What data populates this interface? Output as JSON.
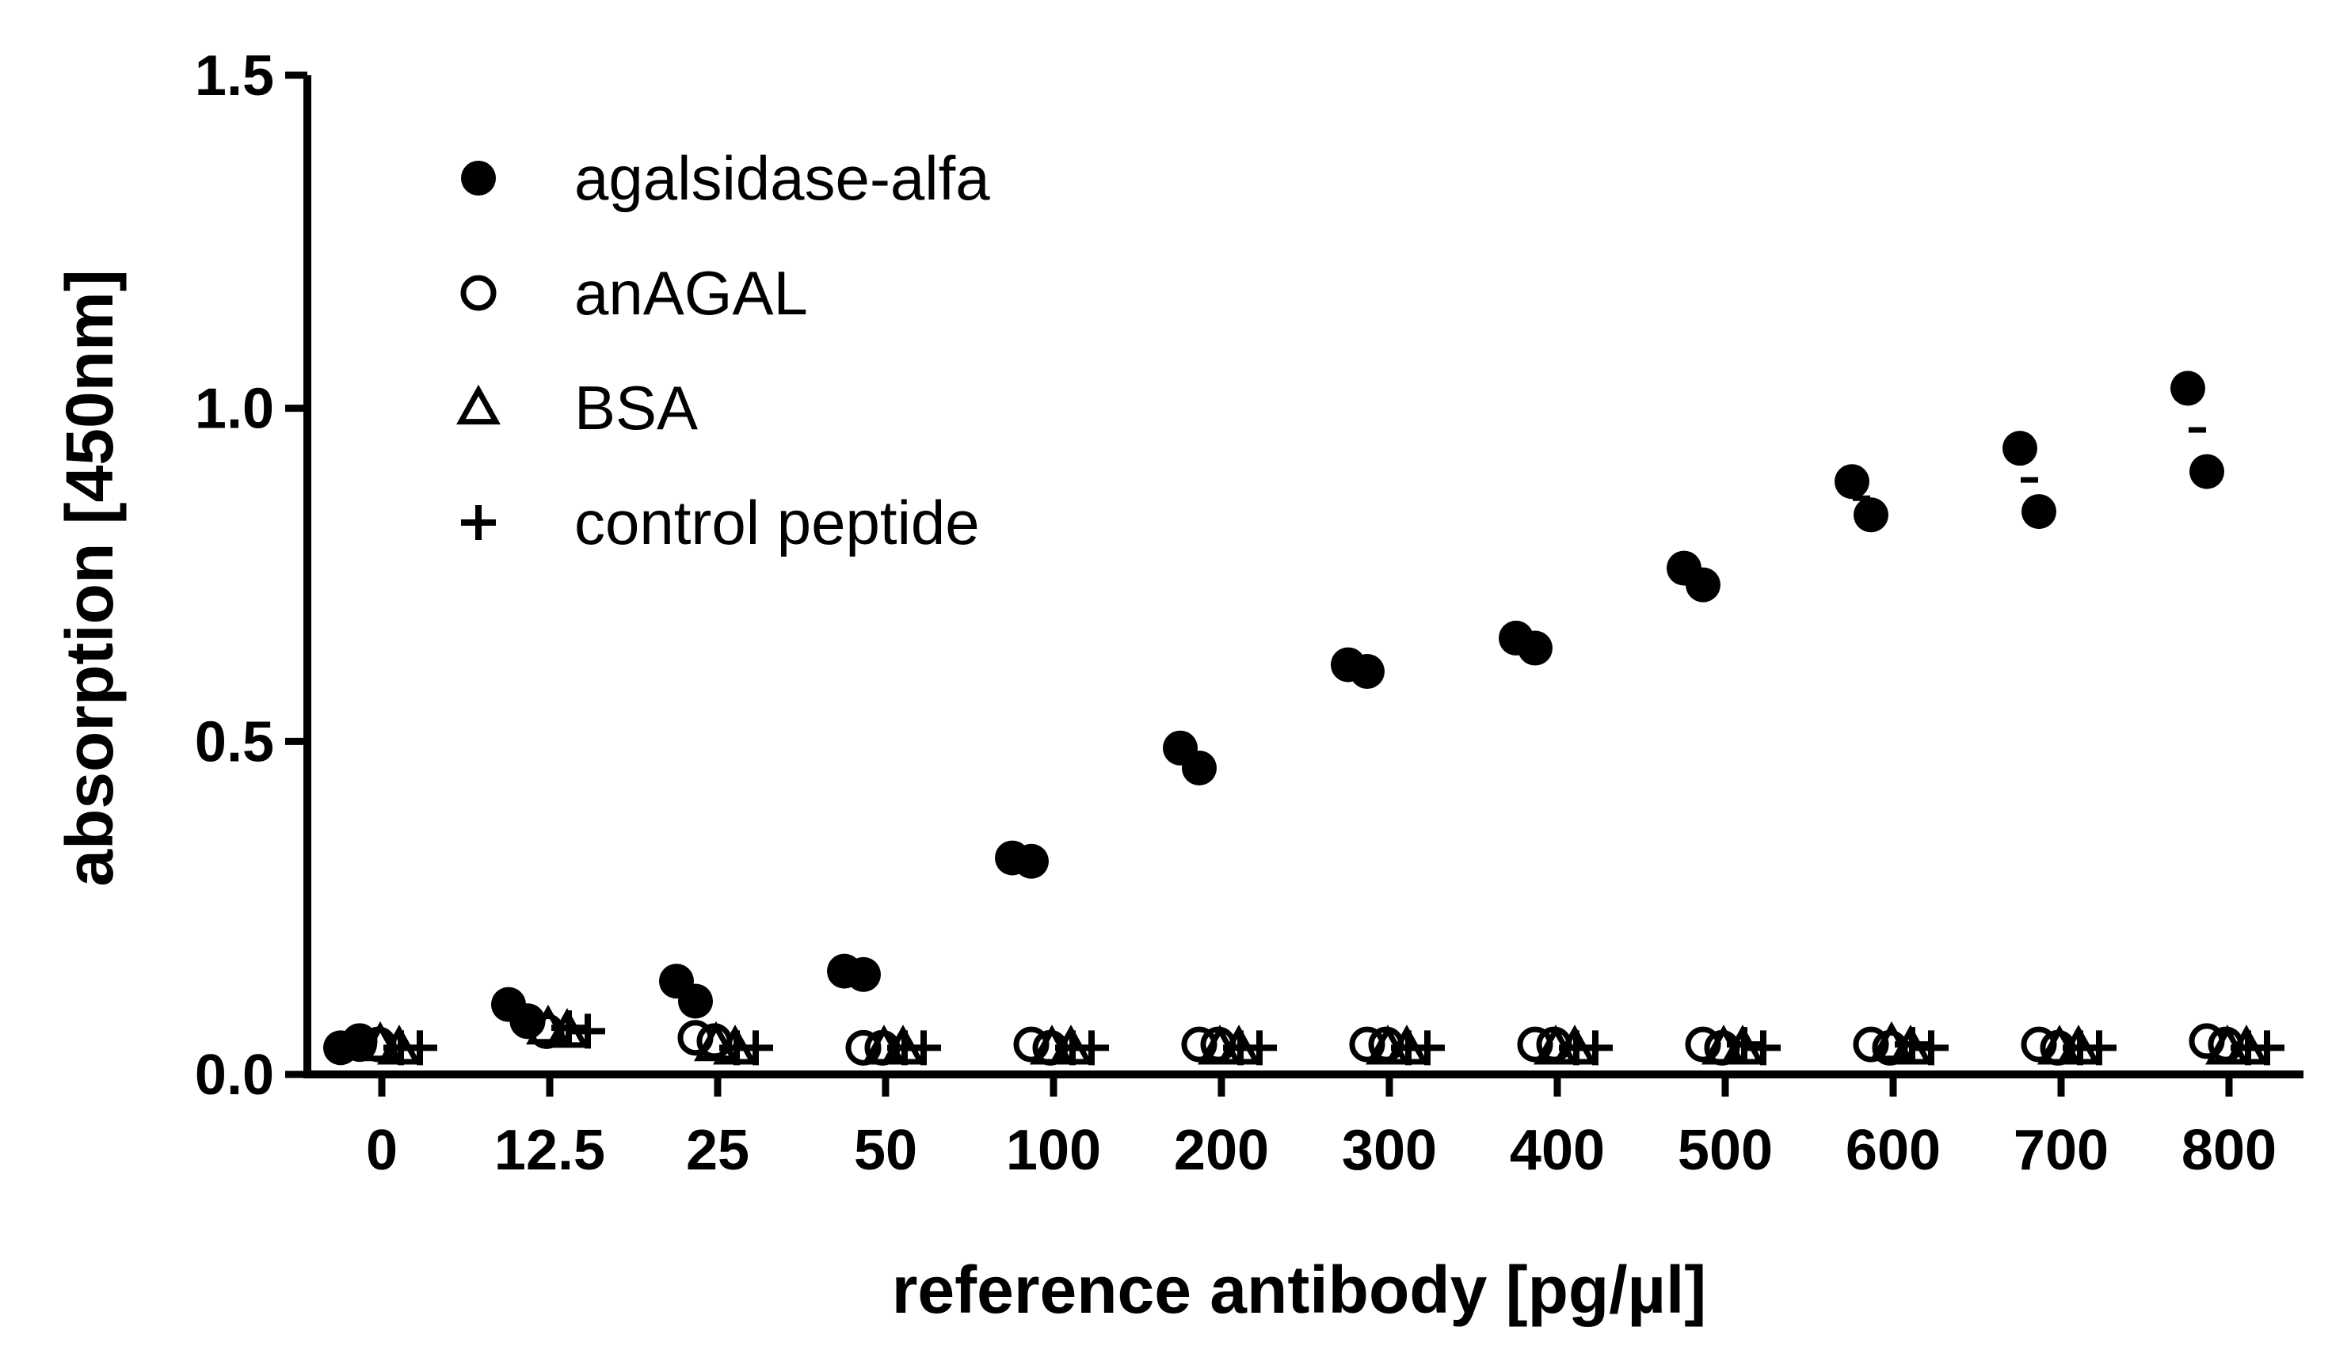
{
  "chart_data": {
    "type": "scatter",
    "title": "",
    "xlabel": "reference antibody [pg/µl]",
    "ylabel": "absorption [450nm]",
    "categories": [
      "0",
      "12.5",
      "25",
      "50",
      "100",
      "200",
      "300",
      "400",
      "500",
      "600",
      "700",
      "800"
    ],
    "ylim": [
      0,
      1.5
    ],
    "yticks": [
      "0.0",
      "0.5",
      "1.0",
      "1.5"
    ],
    "yticks_values": [
      0,
      0.5,
      1.0,
      1.5
    ],
    "grid": false,
    "legend_position": "top-left",
    "series": [
      {
        "name": "agalsidase-alfa",
        "marker": "filled-circle",
        "values": [
          [
            0.04,
            0.045
          ],
          [
            0.105,
            0.08
          ],
          [
            0.14,
            0.11
          ],
          [
            0.155,
            0.15
          ],
          [
            0.325,
            0.32
          ],
          [
            0.49,
            0.46
          ],
          [
            0.615,
            0.605
          ],
          [
            0.655,
            0.64
          ],
          [
            0.76,
            0.735
          ],
          [
            0.89,
            0.84
          ],
          [
            0.94,
            0.845
          ],
          [
            1.03,
            0.905
          ]
        ],
        "means": [
          0.0425,
          0.0925,
          0.125,
          0.1525,
          0.3225,
          0.475,
          0.61,
          0.6475,
          0.7475,
          0.865,
          0.8925,
          0.9675
        ]
      },
      {
        "name": "anAGAL",
        "marker": "open-circle",
        "values": [
          [
            0.05,
            0.045
          ],
          [
            0.08,
            0.065
          ],
          [
            0.055,
            0.05
          ],
          [
            0.04,
            0.04
          ],
          [
            0.045,
            0.04
          ],
          [
            0.045,
            0.045
          ],
          [
            0.045,
            0.045
          ],
          [
            0.045,
            0.045
          ],
          [
            0.045,
            0.04
          ],
          [
            0.045,
            0.04
          ],
          [
            0.045,
            0.04
          ],
          [
            0.05,
            0.045
          ]
        ]
      },
      {
        "name": "BSA",
        "marker": "open-triangle",
        "values": [
          [
            0.045,
            0.04
          ],
          [
            0.07,
            0.065
          ],
          [
            0.045,
            0.04
          ],
          [
            0.04,
            0.04
          ],
          [
            0.04,
            0.04
          ],
          [
            0.04,
            0.04
          ],
          [
            0.04,
            0.04
          ],
          [
            0.04,
            0.04
          ],
          [
            0.04,
            0.04
          ],
          [
            0.045,
            0.04
          ],
          [
            0.04,
            0.04
          ],
          [
            0.04,
            0.04
          ]
        ]
      },
      {
        "name": "control peptide",
        "marker": "plus",
        "values": [
          [
            0.04,
            0.04
          ],
          [
            0.07,
            0.065
          ],
          [
            0.04,
            0.04
          ],
          [
            0.04,
            0.04
          ],
          [
            0.04,
            0.04
          ],
          [
            0.04,
            0.04
          ],
          [
            0.04,
            0.04
          ],
          [
            0.04,
            0.04
          ],
          [
            0.045,
            0.04
          ],
          [
            0.045,
            0.04
          ],
          [
            0.04,
            0.04
          ],
          [
            0.04,
            0.04
          ]
        ]
      }
    ]
  }
}
